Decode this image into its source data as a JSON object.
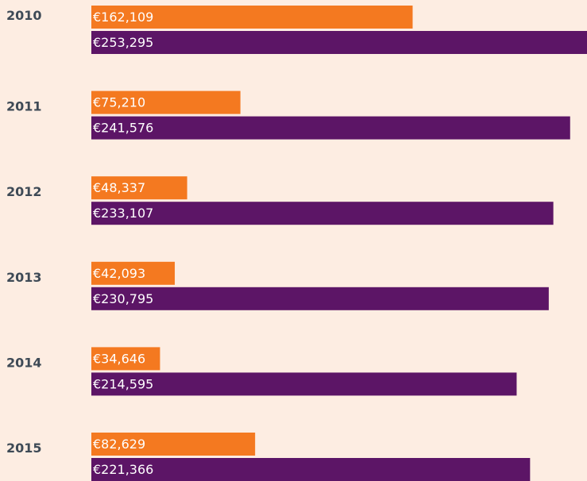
{
  "chart_data": {
    "type": "bar",
    "orientation": "horizontal",
    "categories": [
      "2010",
      "2011",
      "2012",
      "2013",
      "2014",
      "2015"
    ],
    "series": [
      {
        "color": "#f47920",
        "values": [
          162109,
          75210,
          48337,
          42093,
          34646,
          82629
        ],
        "value_labels": [
          "€162,109",
          "€75,210",
          "€48,337",
          "€42,093",
          "€34,646",
          "€82,629"
        ]
      },
      {
        "color": "#5c1566",
        "values": [
          253295,
          241576,
          233107,
          230795,
          214595,
          221366
        ],
        "value_labels": [
          "€253,295",
          "€241,576",
          "€233,107",
          "€230,795",
          "€214,595",
          "€221,366"
        ]
      }
    ]
  }
}
